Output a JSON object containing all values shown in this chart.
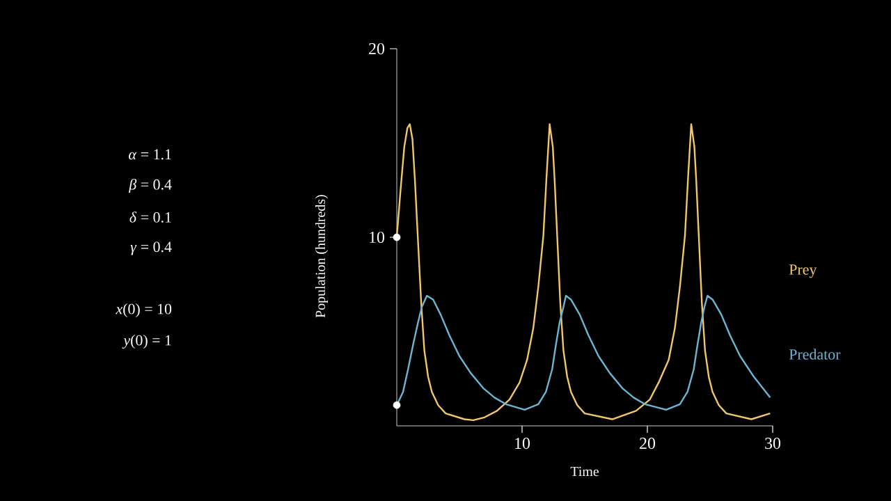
{
  "chart_data": {
    "type": "line",
    "xlabel": "Time",
    "ylabel": "Population (hundreds)",
    "xlim": [
      0,
      30
    ],
    "ylim": [
      0,
      20
    ],
    "xticks": [
      10,
      20,
      30
    ],
    "yticks": [
      10,
      20
    ],
    "series": [
      {
        "name": "Prey",
        "color": "#f2c76b",
        "x": [
          0,
          0.3,
          0.6,
          0.85,
          1.04,
          1.25,
          1.45,
          1.67,
          1.95,
          2.2,
          2.5,
          2.8,
          3.3,
          3.9,
          5.4,
          6.1,
          7.0,
          8.0,
          9.0,
          9.8,
          10.4,
          10.9,
          11.3,
          11.7,
          11.95,
          12.2,
          12.45,
          12.6,
          12.8,
          13.05,
          13.3,
          13.6,
          13.9,
          14.4,
          15.0,
          17.2,
          19.1,
          20.2,
          20.9,
          21.7,
          22.2,
          22.6,
          23.0,
          23.25,
          23.5,
          23.75,
          23.9,
          24.1,
          24.35,
          24.6,
          24.9,
          25.2,
          25.7,
          26.3,
          28.3,
          29.8
        ],
        "values": [
          10,
          12.5,
          14.8,
          15.8,
          16.0,
          15.2,
          13.0,
          10.1,
          6.5,
          4.0,
          2.6,
          1.8,
          1.1,
          0.66,
          0.35,
          0.3,
          0.45,
          0.8,
          1.4,
          2.3,
          3.5,
          5.2,
          7.4,
          10.1,
          13.2,
          16.0,
          14.8,
          13.0,
          10.1,
          6.5,
          4.0,
          2.6,
          1.8,
          1.1,
          0.66,
          0.35,
          0.8,
          1.4,
          2.3,
          3.5,
          5.2,
          7.4,
          10.1,
          13.2,
          16.0,
          14.8,
          13.0,
          10.1,
          6.5,
          4.0,
          2.6,
          1.8,
          1.1,
          0.66,
          0.35,
          0.66
        ]
      },
      {
        "name": "Predator",
        "color": "#6cb6d4",
        "x": [
          0,
          0.5,
          0.9,
          1.3,
          1.7,
          2.0,
          2.4,
          2.9,
          3.5,
          4.2,
          5.0,
          5.9,
          6.9,
          7.8,
          8.7,
          10.2,
          11.3,
          11.9,
          12.4,
          12.7,
          13.0,
          13.3,
          13.5,
          13.9,
          14.6,
          15.3,
          16.1,
          17.0,
          18.0,
          18.9,
          19.8,
          21.5,
          22.6,
          23.2,
          23.7,
          24.0,
          24.3,
          24.55,
          24.8,
          25.2,
          25.9,
          26.6,
          27.4,
          28.5,
          29.8
        ],
        "values": [
          1.1,
          1.8,
          3.0,
          4.3,
          5.5,
          6.3,
          6.9,
          6.7,
          5.9,
          4.8,
          3.7,
          2.8,
          2.0,
          1.5,
          1.15,
          0.85,
          1.15,
          1.8,
          3.0,
          4.3,
          5.5,
          6.3,
          6.9,
          6.7,
          5.9,
          4.8,
          3.7,
          2.8,
          2.0,
          1.5,
          1.15,
          0.85,
          1.15,
          1.8,
          3.0,
          4.3,
          5.5,
          6.3,
          6.9,
          6.7,
          5.9,
          4.8,
          3.7,
          2.6,
          1.5
        ]
      },
      {
        "type": "scatter",
        "color": "#ffffff",
        "x": [
          0,
          0
        ],
        "values": [
          10,
          1.1
        ]
      }
    ],
    "line_style": "solid",
    "annotations": [
      "*α* = 1.1",
      "*β* = 0.4",
      "*δ* = 0.1",
      "*γ* = 0.4",
      "*x*(0) = 10",
      "*y*(0) = 1"
    ]
  }
}
